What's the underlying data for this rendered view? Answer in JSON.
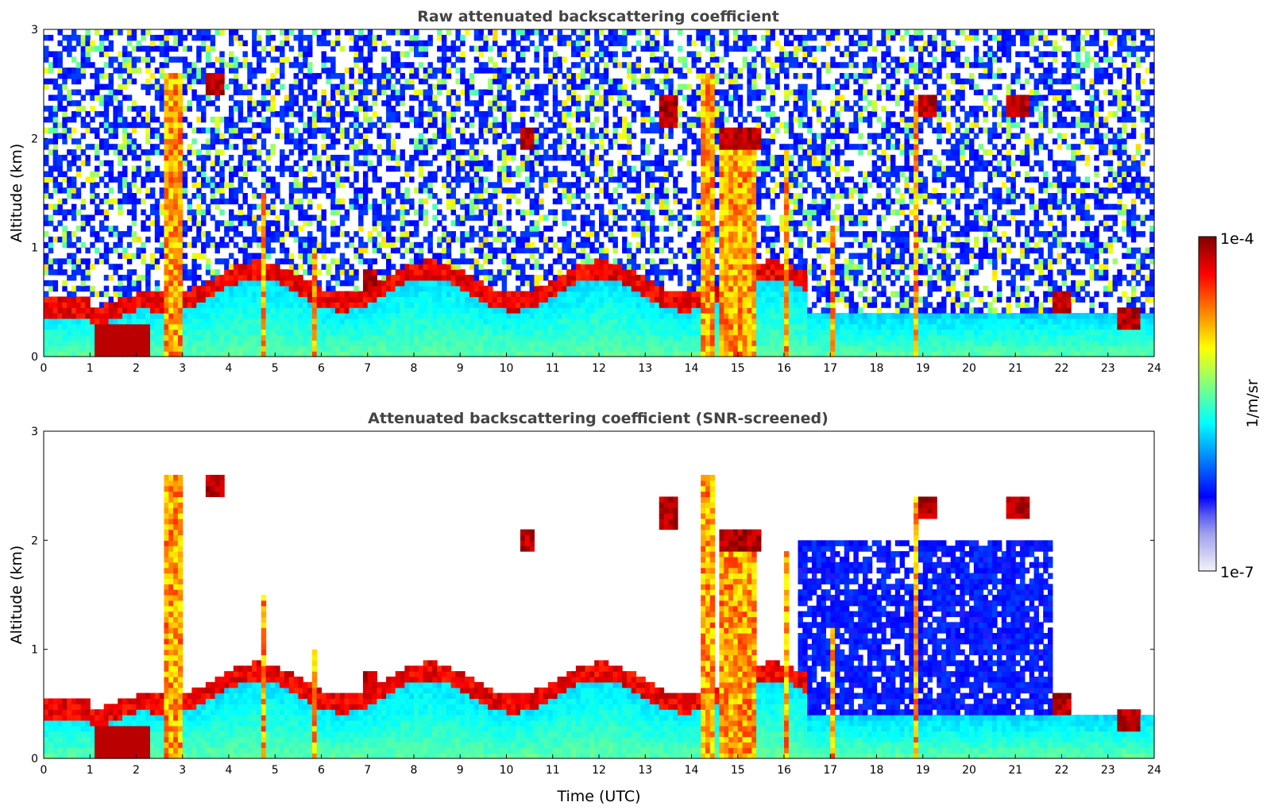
{
  "chart_data": [
    {
      "type": "heatmap",
      "title": "Raw attenuated backscattering coefficient",
      "xlabel": "",
      "ylabel": "Altitude (km)",
      "xlim": [
        0,
        24
      ],
      "ylim": [
        0,
        3
      ],
      "xticks": [
        "0",
        "1",
        "2",
        "3",
        "4",
        "5",
        "6",
        "7",
        "8",
        "9",
        "10",
        "11",
        "12",
        "13",
        "14",
        "15",
        "16",
        "17",
        "18",
        "19",
        "20",
        "21",
        "22",
        "23",
        "24"
      ],
      "yticks": [
        "0",
        "1",
        "2",
        "3"
      ],
      "variant": "raw"
    },
    {
      "type": "heatmap",
      "title": "Attenuated backscattering coefficient (SNR-screened)",
      "xlabel": "Time (UTC)",
      "ylabel": "Altitude (km)",
      "xlim": [
        0,
        24
      ],
      "ylim": [
        0,
        3
      ],
      "xticks": [
        "0",
        "1",
        "2",
        "3",
        "4",
        "5",
        "6",
        "7",
        "8",
        "9",
        "10",
        "11",
        "12",
        "13",
        "14",
        "15",
        "16",
        "17",
        "18",
        "19",
        "20",
        "21",
        "22",
        "23",
        "24"
      ],
      "yticks": [
        "0",
        "1",
        "2",
        "3"
      ],
      "variant": "screened"
    }
  ],
  "colorbar": {
    "label": "1/m/sr",
    "max_label": "1e-4",
    "min_label": "1e-7",
    "colors": [
      "#f2f2fa",
      "#c9c9f2",
      "#a0a0ee",
      "#5a5af0",
      "#0000ff",
      "#0040ff",
      "#0080ff",
      "#00c0ff",
      "#00ffff",
      "#40ffbf",
      "#80ff80",
      "#c0ff40",
      "#ffff00",
      "#ffc000",
      "#ff8000",
      "#ff4000",
      "#ff0000",
      "#c00000",
      "#800000"
    ]
  }
}
